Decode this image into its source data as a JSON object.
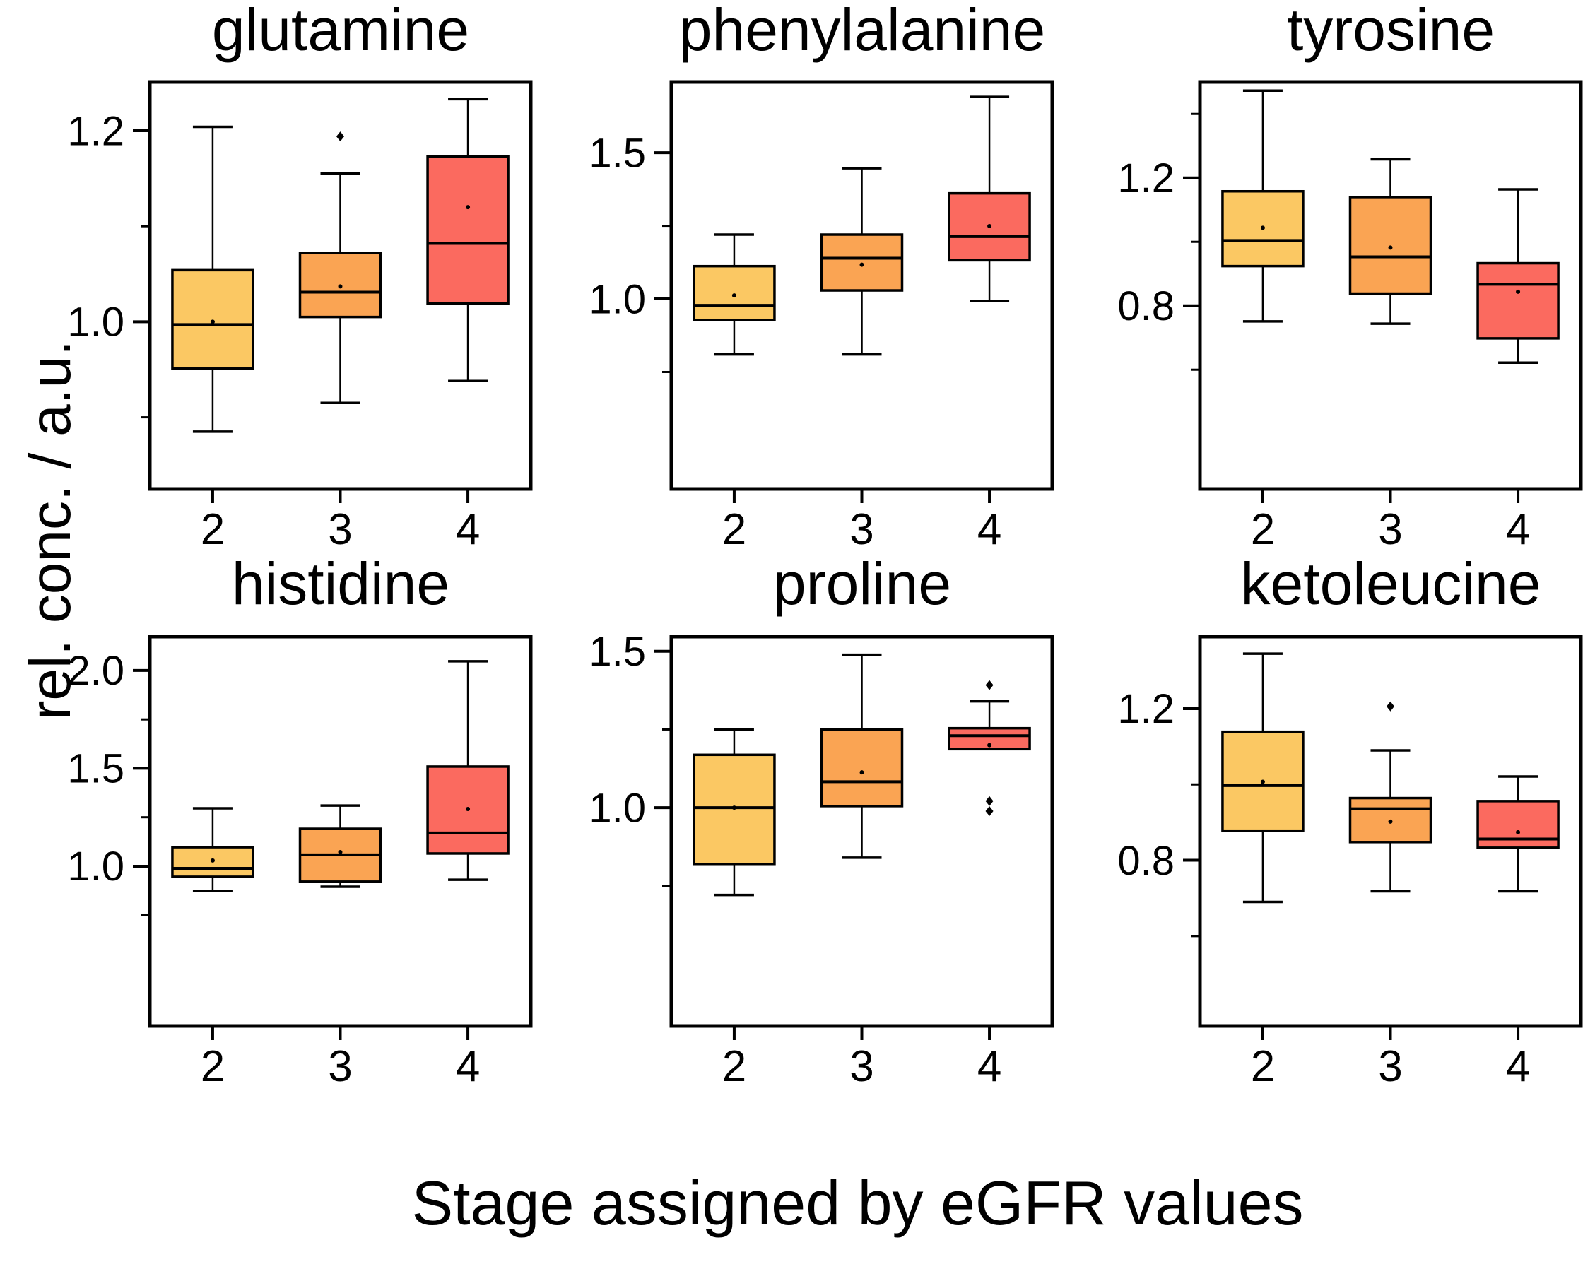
{
  "figure": {
    "x_axis_title": "Stage assigned by eGFR values",
    "y_axis_title": "rel. conc. / a.u.",
    "categories": [
      "2",
      "3",
      "4"
    ],
    "colors": {
      "stage_fills": [
        "#FBC863",
        "#FAA453",
        "#FB6A5F"
      ],
      "stroke": "#000000",
      "background": "#FFFFFF"
    }
  },
  "chart_data": [
    {
      "type": "box",
      "title": "glutamine",
      "ylim": [
        0.825,
        1.251
      ],
      "yticks_major": [
        {
          "value": 1.0,
          "label": "1.0"
        },
        {
          "value": 1.2,
          "label": "1.2"
        }
      ],
      "yticks_minor": [
        0.9,
        1.1
      ],
      "categories": [
        "2",
        "3",
        "4"
      ],
      "boxes": [
        {
          "category": "2",
          "whisker_low": 0.885,
          "q1": 0.951,
          "median": 0.997,
          "q3": 1.054,
          "whisker_high": 1.204,
          "mean": 1.0,
          "outliers": []
        },
        {
          "category": "3",
          "whisker_low": 0.915,
          "q1": 1.005,
          "median": 1.031,
          "q3": 1.072,
          "whisker_high": 1.155,
          "mean": 1.037,
          "outliers": [
            1.194
          ]
        },
        {
          "category": "4",
          "whisker_low": 0.938,
          "q1": 1.019,
          "median": 1.082,
          "q3": 1.173,
          "whisker_high": 1.233,
          "mean": 1.12,
          "outliers": []
        }
      ]
    },
    {
      "type": "box",
      "title": "phenylalanine",
      "ylim": [
        0.35,
        1.742
      ],
      "yticks_major": [
        {
          "value": 1.0,
          "label": "1.0"
        },
        {
          "value": 1.5,
          "label": "1.5"
        }
      ],
      "yticks_minor": [
        0.75,
        1.25
      ],
      "categories": [
        "2",
        "3",
        "4"
      ],
      "boxes": [
        {
          "category": "2",
          "whisker_low": 0.81,
          "q1": 0.928,
          "median": 0.978,
          "q3": 1.112,
          "whisker_high": 1.22,
          "mean": 1.012,
          "outliers": []
        },
        {
          "category": "3",
          "whisker_low": 0.81,
          "q1": 1.029,
          "median": 1.139,
          "q3": 1.22,
          "whisker_high": 1.447,
          "mean": 1.117,
          "outliers": []
        },
        {
          "category": "4",
          "whisker_low": 0.993,
          "q1": 1.132,
          "median": 1.213,
          "q3": 1.361,
          "whisker_high": 1.691,
          "mean": 1.249,
          "outliers": []
        }
      ]
    },
    {
      "type": "box",
      "title": "tyrosine",
      "ylim": [
        0.227,
        1.5
      ],
      "yticks_major": [
        {
          "value": 0.8,
          "label": "0.8"
        },
        {
          "value": 1.2,
          "label": "1.2"
        }
      ],
      "yticks_minor": [
        0.6,
        1.0,
        1.4
      ],
      "categories": [
        "2",
        "3",
        "4"
      ],
      "boxes": [
        {
          "category": "2",
          "whisker_low": 0.751,
          "q1": 0.924,
          "median": 1.004,
          "q3": 1.158,
          "whisker_high": 1.473,
          "mean": 1.044,
          "outliers": []
        },
        {
          "category": "3",
          "whisker_low": 0.744,
          "q1": 0.838,
          "median": 0.953,
          "q3": 1.14,
          "whisker_high": 1.258,
          "mean": 0.982,
          "outliers": []
        },
        {
          "category": "4",
          "whisker_low": 0.622,
          "q1": 0.698,
          "median": 0.867,
          "q3": 0.933,
          "whisker_high": 1.164,
          "mean": 0.844,
          "outliers": []
        }
      ]
    },
    {
      "type": "box",
      "title": "histidine",
      "ylim": [
        0.184,
        2.173
      ],
      "yticks_major": [
        {
          "value": 1.0,
          "label": "1.0"
        },
        {
          "value": 1.5,
          "label": "1.5"
        },
        {
          "value": 2.0,
          "label": "2.0"
        }
      ],
      "yticks_minor": [
        0.75,
        1.25,
        1.75
      ],
      "categories": [
        "2",
        "3",
        "4"
      ],
      "boxes": [
        {
          "category": "2",
          "whisker_low": 0.874,
          "q1": 0.946,
          "median": 0.989,
          "q3": 1.097,
          "whisker_high": 1.296,
          "mean": 1.029,
          "outliers": []
        },
        {
          "category": "3",
          "whisker_low": 0.895,
          "q1": 0.921,
          "median": 1.058,
          "q3": 1.191,
          "whisker_high": 1.31,
          "mean": 1.072,
          "outliers": []
        },
        {
          "category": "4",
          "whisker_low": 0.931,
          "q1": 1.065,
          "median": 1.17,
          "q3": 1.509,
          "whisker_high": 2.047,
          "mean": 1.292,
          "outliers": []
        }
      ]
    },
    {
      "type": "box",
      "title": "proline",
      "ylim": [
        0.302,
        1.547
      ],
      "yticks_major": [
        {
          "value": 1.0,
          "label": "1.0"
        },
        {
          "value": 1.5,
          "label": "1.5"
        }
      ],
      "yticks_minor": [
        0.75,
        1.25
      ],
      "categories": [
        "2",
        "3",
        "4"
      ],
      "boxes": [
        {
          "category": "2",
          "whisker_low": 0.721,
          "q1": 0.82,
          "median": 1.0,
          "q3": 1.169,
          "whisker_high": 1.25,
          "mean": 1.0,
          "outliers": []
        },
        {
          "category": "3",
          "whisker_low": 0.84,
          "q1": 1.005,
          "median": 1.083,
          "q3": 1.25,
          "whisker_high": 1.489,
          "mean": 1.113,
          "outliers": []
        },
        {
          "category": "4",
          "whisker_low": 1.187,
          "q1": 1.187,
          "median": 1.23,
          "q3": 1.254,
          "whisker_high": 1.34,
          "mean": 1.2,
          "outliers": [
            1.392,
            1.021,
            0.989
          ]
        }
      ]
    },
    {
      "type": "box",
      "title": "ketoleucine",
      "ylim": [
        0.363,
        1.39
      ],
      "yticks_major": [
        {
          "value": 0.8,
          "label": "0.8"
        },
        {
          "value": 1.2,
          "label": "1.2"
        }
      ],
      "yticks_minor": [
        0.6,
        1.0
      ],
      "categories": [
        "2",
        "3",
        "4"
      ],
      "boxes": [
        {
          "category": "2",
          "whisker_low": 0.69,
          "q1": 0.878,
          "median": 0.997,
          "q3": 1.139,
          "whisker_high": 1.345,
          "mean": 1.007,
          "outliers": []
        },
        {
          "category": "3",
          "whisker_low": 0.718,
          "q1": 0.848,
          "median": 0.936,
          "q3": 0.964,
          "whisker_high": 1.09,
          "mean": 0.902,
          "outliers": [
            1.206
          ]
        },
        {
          "category": "4",
          "whisker_low": 0.718,
          "q1": 0.833,
          "median": 0.856,
          "q3": 0.956,
          "whisker_high": 1.021,
          "mean": 0.874,
          "outliers": []
        }
      ]
    }
  ]
}
